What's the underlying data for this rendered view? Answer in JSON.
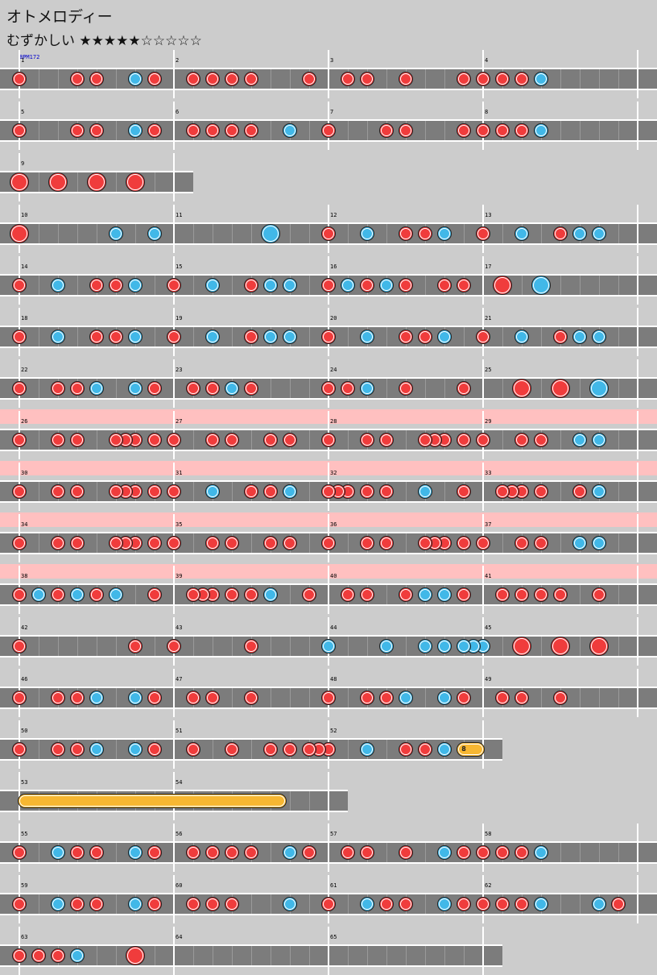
{
  "song": {
    "title": "オトメロディー",
    "difficulty": "むずかしい",
    "stars_filled": 5,
    "stars_total": 10,
    "stars_text": "★★★★★☆☆☆☆☆",
    "bpm_label": "BPM172"
  },
  "rows": [
    {
      "measures": [
        1,
        2,
        3,
        4
      ],
      "gogo": false,
      "notes": [
        [
          0,
          "d"
        ],
        [
          3,
          "d"
        ],
        [
          4,
          "d"
        ],
        [
          6,
          "k"
        ],
        [
          7,
          "d"
        ],
        [
          9,
          "d"
        ],
        [
          10,
          "d"
        ],
        [
          11,
          "d"
        ],
        [
          12,
          "d"
        ],
        [
          15,
          "d"
        ],
        [
          17,
          "d"
        ],
        [
          18,
          "d"
        ],
        [
          20,
          "d"
        ],
        [
          23,
          "d"
        ],
        [
          24,
          "d"
        ],
        [
          25,
          "d"
        ],
        [
          26,
          "d"
        ],
        [
          27,
          "k"
        ]
      ]
    },
    {
      "measures": [
        5,
        6,
        7,
        8
      ],
      "gogo": false,
      "notes": [
        [
          0,
          "d"
        ],
        [
          3,
          "d"
        ],
        [
          4,
          "d"
        ],
        [
          6,
          "k"
        ],
        [
          7,
          "d"
        ],
        [
          9,
          "d"
        ],
        [
          10,
          "d"
        ],
        [
          11,
          "d"
        ],
        [
          12,
          "d"
        ],
        [
          14,
          "k"
        ],
        [
          16,
          "d"
        ],
        [
          19,
          "d"
        ],
        [
          20,
          "d"
        ],
        [
          23,
          "d"
        ],
        [
          24,
          "d"
        ],
        [
          25,
          "d"
        ],
        [
          26,
          "d"
        ],
        [
          27,
          "k"
        ]
      ]
    },
    {
      "measures": [
        9
      ],
      "gogo": false,
      "notes": [
        [
          0,
          "D"
        ],
        [
          2,
          "D"
        ],
        [
          4,
          "D"
        ],
        [
          6,
          "D"
        ]
      ]
    },
    {
      "measures": [
        10,
        11,
        12,
        13
      ],
      "gogo": false,
      "notes": [
        [
          0,
          "D"
        ],
        [
          5,
          "k"
        ],
        [
          7,
          "k"
        ],
        [
          13,
          "K"
        ],
        [
          16,
          "d"
        ],
        [
          18,
          "k"
        ],
        [
          20,
          "d"
        ],
        [
          21,
          "d"
        ],
        [
          22,
          "k"
        ],
        [
          24,
          "d"
        ],
        [
          26,
          "k"
        ],
        [
          28,
          "d"
        ],
        [
          29,
          "k"
        ],
        [
          30,
          "k"
        ]
      ]
    },
    {
      "measures": [
        14,
        15,
        16,
        17
      ],
      "gogo": false,
      "notes": [
        [
          0,
          "d"
        ],
        [
          2,
          "k"
        ],
        [
          4,
          "d"
        ],
        [
          5,
          "d"
        ],
        [
          6,
          "k"
        ],
        [
          8,
          "d"
        ],
        [
          10,
          "k"
        ],
        [
          12,
          "d"
        ],
        [
          13,
          "k"
        ],
        [
          14,
          "k"
        ],
        [
          16,
          "d"
        ],
        [
          17,
          "k"
        ],
        [
          18,
          "d"
        ],
        [
          19,
          "k"
        ],
        [
          20,
          "d"
        ],
        [
          22,
          "d"
        ],
        [
          23,
          "d"
        ],
        [
          25,
          "D"
        ],
        [
          27,
          "K"
        ]
      ]
    },
    {
      "measures": [
        18,
        19,
        20,
        21
      ],
      "gogo": false,
      "notes": [
        [
          0,
          "d"
        ],
        [
          2,
          "k"
        ],
        [
          4,
          "d"
        ],
        [
          5,
          "d"
        ],
        [
          6,
          "k"
        ],
        [
          8,
          "d"
        ],
        [
          10,
          "k"
        ],
        [
          12,
          "d"
        ],
        [
          13,
          "k"
        ],
        [
          14,
          "k"
        ],
        [
          16,
          "d"
        ],
        [
          18,
          "k"
        ],
        [
          20,
          "d"
        ],
        [
          21,
          "d"
        ],
        [
          22,
          "k"
        ],
        [
          24,
          "d"
        ],
        [
          26,
          "k"
        ],
        [
          28,
          "d"
        ],
        [
          29,
          "k"
        ],
        [
          30,
          "k"
        ]
      ]
    },
    {
      "measures": [
        22,
        23,
        24,
        25
      ],
      "gogo": false,
      "notes": [
        [
          0,
          "d"
        ],
        [
          2,
          "d"
        ],
        [
          3,
          "d"
        ],
        [
          4,
          "k"
        ],
        [
          6,
          "k"
        ],
        [
          7,
          "d"
        ],
        [
          9,
          "d"
        ],
        [
          10,
          "d"
        ],
        [
          11,
          "k"
        ],
        [
          12,
          "d"
        ],
        [
          16,
          "d"
        ],
        [
          17,
          "d"
        ],
        [
          18,
          "k"
        ],
        [
          20,
          "d"
        ],
        [
          23,
          "d"
        ],
        [
          26,
          "D"
        ],
        [
          28,
          "D"
        ],
        [
          30,
          "K"
        ]
      ]
    },
    {
      "measures": [
        26,
        27,
        28,
        29
      ],
      "gogo": true,
      "notes": [
        [
          0,
          "d"
        ],
        [
          2,
          "d"
        ],
        [
          3,
          "d"
        ],
        [
          5,
          "d"
        ],
        [
          5.5,
          "d"
        ],
        [
          6,
          "d"
        ],
        [
          7,
          "d"
        ],
        [
          8,
          "d"
        ],
        [
          10,
          "d"
        ],
        [
          11,
          "d"
        ],
        [
          13,
          "d"
        ],
        [
          14,
          "d"
        ],
        [
          16,
          "d"
        ],
        [
          18,
          "d"
        ],
        [
          19,
          "d"
        ],
        [
          21,
          "d"
        ],
        [
          21.5,
          "d"
        ],
        [
          22,
          "d"
        ],
        [
          23,
          "d"
        ],
        [
          24,
          "d"
        ],
        [
          26,
          "d"
        ],
        [
          27,
          "d"
        ],
        [
          29,
          "k"
        ],
        [
          30,
          "k"
        ]
      ]
    },
    {
      "measures": [
        30,
        31,
        32,
        33
      ],
      "gogo": true,
      "notes": [
        [
          0,
          "d"
        ],
        [
          2,
          "d"
        ],
        [
          3,
          "d"
        ],
        [
          5,
          "d"
        ],
        [
          5.5,
          "d"
        ],
        [
          6,
          "d"
        ],
        [
          7,
          "d"
        ],
        [
          8,
          "d"
        ],
        [
          10,
          "k"
        ],
        [
          12,
          "d"
        ],
        [
          13,
          "d"
        ],
        [
          14,
          "k"
        ],
        [
          16,
          "d"
        ],
        [
          16.5,
          "d"
        ],
        [
          17,
          "d"
        ],
        [
          18,
          "d"
        ],
        [
          19,
          "d"
        ],
        [
          21,
          "k"
        ],
        [
          23,
          "d"
        ],
        [
          25,
          "d"
        ],
        [
          25.5,
          "d"
        ],
        [
          26,
          "d"
        ],
        [
          27,
          "d"
        ],
        [
          29,
          "d"
        ],
        [
          30,
          "k"
        ]
      ]
    },
    {
      "measures": [
        34,
        35,
        36,
        37
      ],
      "gogo": true,
      "notes": [
        [
          0,
          "d"
        ],
        [
          2,
          "d"
        ],
        [
          3,
          "d"
        ],
        [
          5,
          "d"
        ],
        [
          5.5,
          "d"
        ],
        [
          6,
          "d"
        ],
        [
          7,
          "d"
        ],
        [
          8,
          "d"
        ],
        [
          10,
          "d"
        ],
        [
          11,
          "d"
        ],
        [
          13,
          "d"
        ],
        [
          14,
          "d"
        ],
        [
          16,
          "d"
        ],
        [
          18,
          "d"
        ],
        [
          19,
          "d"
        ],
        [
          21,
          "d"
        ],
        [
          21.5,
          "d"
        ],
        [
          22,
          "d"
        ],
        [
          23,
          "d"
        ],
        [
          24,
          "d"
        ],
        [
          26,
          "d"
        ],
        [
          27,
          "d"
        ],
        [
          29,
          "k"
        ],
        [
          30,
          "k"
        ]
      ]
    },
    {
      "measures": [
        38,
        39,
        40,
        41
      ],
      "gogo": true,
      "notes": [
        [
          0,
          "d"
        ],
        [
          1,
          "k"
        ],
        [
          2,
          "d"
        ],
        [
          3,
          "k"
        ],
        [
          4,
          "d"
        ],
        [
          5,
          "k"
        ],
        [
          7,
          "d"
        ],
        [
          9,
          "d"
        ],
        [
          9.5,
          "d"
        ],
        [
          10,
          "d"
        ],
        [
          11,
          "d"
        ],
        [
          12,
          "d"
        ],
        [
          13,
          "k"
        ],
        [
          15,
          "d"
        ],
        [
          17,
          "d"
        ],
        [
          18,
          "d"
        ],
        [
          20,
          "d"
        ],
        [
          21,
          "k"
        ],
        [
          22,
          "k"
        ],
        [
          23,
          "d"
        ],
        [
          25,
          "d"
        ],
        [
          26,
          "d"
        ],
        [
          27,
          "d"
        ],
        [
          28,
          "d"
        ],
        [
          30,
          "d"
        ]
      ]
    },
    {
      "measures": [
        42,
        43,
        44,
        45
      ],
      "gogo": false,
      "notes": [
        [
          0,
          "d"
        ],
        [
          6,
          "d"
        ],
        [
          8,
          "d"
        ],
        [
          12,
          "d"
        ],
        [
          16,
          "k"
        ],
        [
          19,
          "k"
        ],
        [
          21,
          "k"
        ],
        [
          22,
          "k"
        ],
        [
          23,
          "k"
        ],
        [
          23.5,
          "k"
        ],
        [
          24,
          "k"
        ],
        [
          26,
          "D"
        ],
        [
          28,
          "D"
        ],
        [
          30,
          "D"
        ]
      ]
    },
    {
      "measures": [
        46,
        47,
        48,
        49
      ],
      "gogo": false,
      "notes": [
        [
          0,
          "d"
        ],
        [
          2,
          "d"
        ],
        [
          3,
          "d"
        ],
        [
          4,
          "k"
        ],
        [
          6,
          "k"
        ],
        [
          7,
          "d"
        ],
        [
          9,
          "d"
        ],
        [
          10,
          "d"
        ],
        [
          12,
          "d"
        ],
        [
          16,
          "d"
        ],
        [
          18,
          "d"
        ],
        [
          19,
          "d"
        ],
        [
          20,
          "k"
        ],
        [
          22,
          "k"
        ],
        [
          23,
          "d"
        ],
        [
          25,
          "d"
        ],
        [
          26,
          "d"
        ],
        [
          28,
          "d"
        ]
      ]
    },
    {
      "measures": [
        50,
        51,
        52
      ],
      "gogo": false,
      "notes": [
        [
          0,
          "d"
        ],
        [
          2,
          "d"
        ],
        [
          3,
          "d"
        ],
        [
          4,
          "k"
        ],
        [
          6,
          "k"
        ],
        [
          7,
          "d"
        ],
        [
          9,
          "d"
        ],
        [
          11,
          "d"
        ],
        [
          13,
          "d"
        ],
        [
          14,
          "d"
        ],
        [
          15,
          "d"
        ],
        [
          15.5,
          "d"
        ],
        [
          16,
          "d"
        ],
        [
          18,
          "k"
        ],
        [
          20,
          "d"
        ],
        [
          21,
          "d"
        ],
        [
          22,
          "k"
        ]
      ],
      "balloon": {
        "start": 23,
        "end": 24,
        "count": "8"
      }
    },
    {
      "measures": [
        53,
        54
      ],
      "gogo": false,
      "notes": [],
      "roll": {
        "start": 0,
        "end": 13.5
      }
    },
    {
      "measures": [
        55,
        56,
        57,
        58
      ],
      "gogo": false,
      "notes": [
        [
          0,
          "d"
        ],
        [
          2,
          "k"
        ],
        [
          3,
          "d"
        ],
        [
          4,
          "d"
        ],
        [
          6,
          "k"
        ],
        [
          7,
          "d"
        ],
        [
          9,
          "d"
        ],
        [
          10,
          "d"
        ],
        [
          11,
          "d"
        ],
        [
          12,
          "d"
        ],
        [
          14,
          "k"
        ],
        [
          15,
          "d"
        ],
        [
          17,
          "d"
        ],
        [
          18,
          "d"
        ],
        [
          20,
          "d"
        ],
        [
          22,
          "k"
        ],
        [
          23,
          "d"
        ],
        [
          24,
          "d"
        ],
        [
          25,
          "d"
        ],
        [
          26,
          "d"
        ],
        [
          27,
          "k"
        ]
      ]
    },
    {
      "measures": [
        59,
        60,
        61,
        62
      ],
      "gogo": false,
      "notes": [
        [
          0,
          "d"
        ],
        [
          2,
          "k"
        ],
        [
          3,
          "d"
        ],
        [
          4,
          "d"
        ],
        [
          6,
          "k"
        ],
        [
          7,
          "d"
        ],
        [
          9,
          "d"
        ],
        [
          10,
          "d"
        ],
        [
          11,
          "d"
        ],
        [
          14,
          "k"
        ],
        [
          16,
          "d"
        ],
        [
          18,
          "k"
        ],
        [
          19,
          "d"
        ],
        [
          20,
          "d"
        ],
        [
          22,
          "k"
        ],
        [
          23,
          "d"
        ],
        [
          24,
          "d"
        ],
        [
          25,
          "d"
        ],
        [
          26,
          "d"
        ],
        [
          27,
          "k"
        ],
        [
          30,
          "k"
        ],
        [
          31,
          "d"
        ]
      ]
    },
    {
      "measures": [
        63,
        64,
        65
      ],
      "gogo": false,
      "notes": [
        [
          0,
          "d"
        ],
        [
          1,
          "d"
        ],
        [
          2,
          "d"
        ],
        [
          3,
          "k"
        ],
        [
          6,
          "D"
        ]
      ]
    }
  ]
}
